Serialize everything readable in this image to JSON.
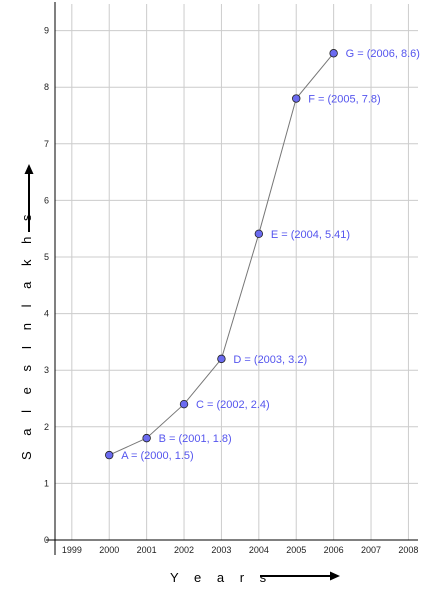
{
  "chart_data": {
    "type": "line",
    "xlabel": "Y e a r s",
    "ylabel": "S a l e s   I n   l a k h s",
    "x_ticks": [
      "1999",
      "2000",
      "2001",
      "2002",
      "2003",
      "2004",
      "2005",
      "2006",
      "2007",
      "2008"
    ],
    "y_ticks": [
      "0",
      "1",
      "2",
      "3",
      "4",
      "5",
      "6",
      "7",
      "8",
      "9"
    ],
    "xlim": [
      1999,
      2008
    ],
    "ylim": [
      0,
      9
    ],
    "grid": true,
    "points": [
      {
        "x": 2000,
        "y": 1.5,
        "label": "A = (2000, 1.5)"
      },
      {
        "x": 2001,
        "y": 1.8,
        "label": "B = (2001, 1.8)"
      },
      {
        "x": 2002,
        "y": 2.4,
        "label": "C = (2002, 2.4)"
      },
      {
        "x": 2003,
        "y": 3.2,
        "label": "D = (2003, 3.2)"
      },
      {
        "x": 2004,
        "y": 5.41,
        "label": "E = (2004, 5.41)"
      },
      {
        "x": 2005,
        "y": 7.8,
        "label": "F = (2005, 7.8)"
      },
      {
        "x": 2006,
        "y": 8.6,
        "label": "G = (2006, 8.6)"
      }
    ],
    "colors": {
      "point_fill": "#6b6bf0",
      "label": "#5555ee",
      "line": "#777777",
      "grid": "#cccccc"
    }
  }
}
